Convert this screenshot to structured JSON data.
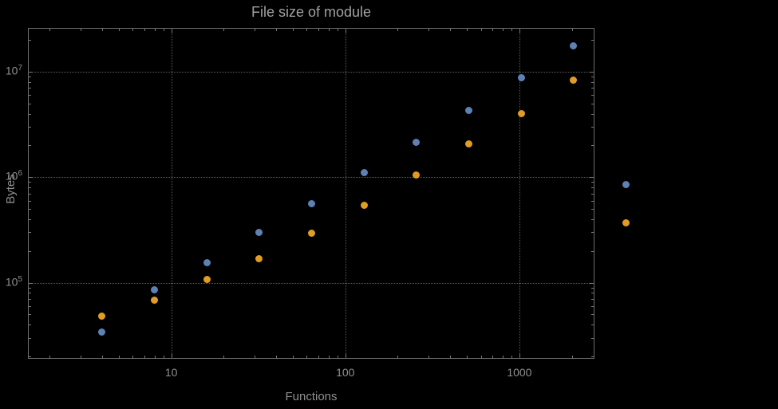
{
  "chart_data": {
    "type": "scatter",
    "title": "File size of module",
    "xlabel": "Functions",
    "ylabel": "Bytes",
    "x_scale": "log",
    "y_scale": "log",
    "x_domain": [
      1.5,
      2700
    ],
    "y_domain": [
      19000,
      26000000
    ],
    "x_ticks": [
      10,
      100,
      1000
    ],
    "x_tick_labels": [
      "10",
      "100",
      "1000"
    ],
    "y_ticks": [
      100000,
      1000000,
      10000000
    ],
    "y_tick_labels": [
      "10^5",
      "10^6",
      "10^7"
    ],
    "grid": "dotted",
    "legend": "none",
    "background": "#000000",
    "grid_color": "#5c5c5c",
    "axis_color": "#6e6e6e",
    "tick_color": "#787878",
    "label_color": "#8f8f8f",
    "title_color": "#a0a0a0",
    "series": [
      {
        "name": "series-blue",
        "color": "#5E81B5",
        "x": [
          4,
          8,
          16,
          32,
          64,
          128,
          256,
          512,
          1024,
          2048,
          4096
        ],
        "y": [
          34000,
          85000,
          155000,
          300000,
          560000,
          1100000,
          2150000,
          4300000,
          8800000,
          17500000,
          850000
        ]
      },
      {
        "name": "series-orange",
        "color": "#E19C24",
        "x": [
          4,
          8,
          16,
          32,
          64,
          128,
          256,
          512,
          1024,
          2048,
          4096
        ],
        "y": [
          48000,
          68000,
          108000,
          170000,
          295000,
          540000,
          1050000,
          2050000,
          4000000,
          8300000,
          370000
        ]
      }
    ]
  }
}
